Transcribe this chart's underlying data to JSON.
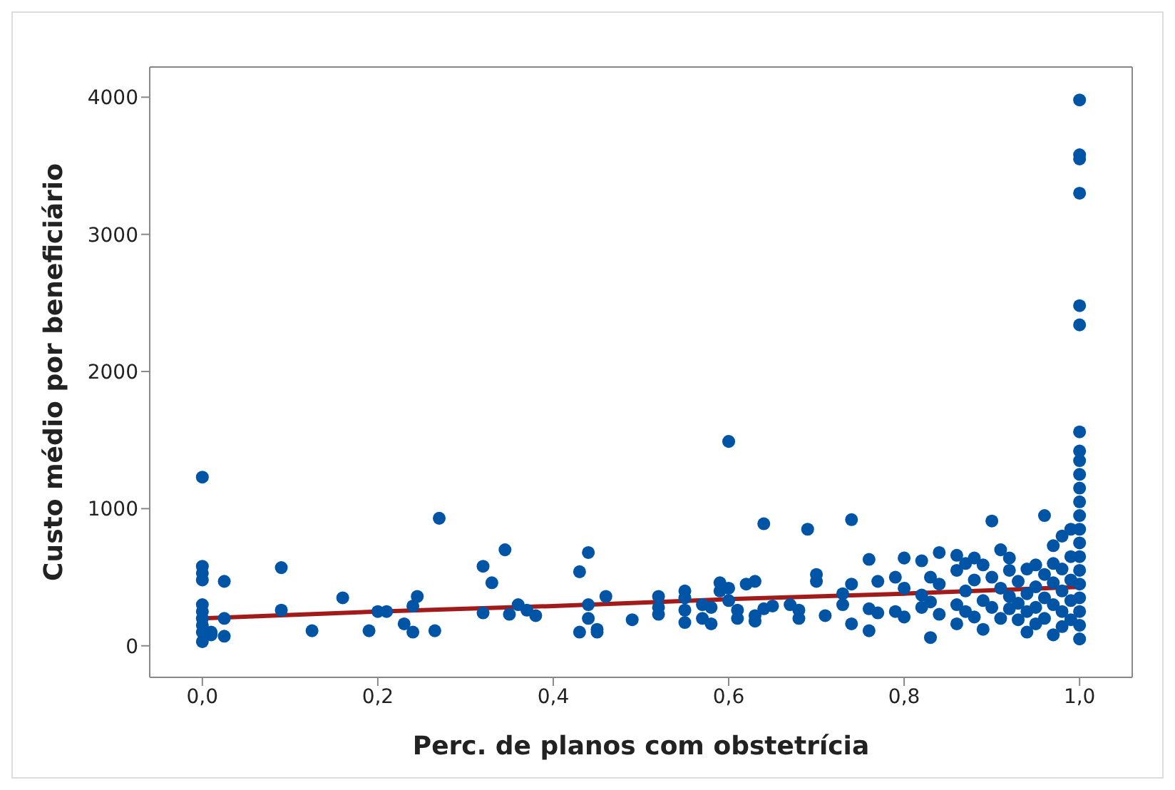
{
  "chart_data": {
    "type": "scatter",
    "xlabel": "Perc. de planos com obstetrícia",
    "ylabel": "Custo médio por beneficiário",
    "xlim": [
      -0.06,
      1.06
    ],
    "ylim": [
      -230,
      4220
    ],
    "xticks": [
      {
        "value": 0,
        "label": "0,0"
      },
      {
        "value": 0.2,
        "label": "0,2"
      },
      {
        "value": 0.4,
        "label": "0,4"
      },
      {
        "value": 0.6,
        "label": "0,6"
      },
      {
        "value": 0.8,
        "label": "0,8"
      },
      {
        "value": 1,
        "label": "1,0"
      }
    ],
    "yticks": [
      0,
      1000,
      2000,
      3000,
      4000
    ],
    "marker": "circle",
    "series": [
      {
        "type": "line",
        "color": "#a11b1b",
        "line_style": "solid",
        "marker": "none",
        "x": [
          0,
          0.2,
          0.4,
          0.6,
          0.8,
          1.0
        ],
        "values": [
          200,
          250,
          290,
          340,
          380,
          430
        ]
      },
      {
        "type": "scatter",
        "color": "#0054a6",
        "x": [
          0,
          0,
          0,
          0,
          0,
          0,
          0,
          0,
          0,
          0,
          0.01,
          0.01,
          0.025,
          0.025,
          0.025,
          0.09,
          0.09,
          0.125,
          0.16,
          0.19,
          0.2,
          0.21,
          0.23,
          0.24,
          0.24,
          0.245,
          0.265,
          0.27,
          0.32,
          0.32,
          0.33,
          0.345,
          0.35,
          0.36,
          0.37,
          0.38,
          0.43,
          0.43,
          0.44,
          0.44,
          0.44,
          0.45,
          0.45,
          0.46,
          0.49,
          0.52,
          0.52,
          0.52,
          0.55,
          0.55,
          0.55,
          0.55,
          0.57,
          0.57,
          0.58,
          0.58,
          0.59,
          0.59,
          0.6,
          0.6,
          0.6,
          0.61,
          0.61,
          0.62,
          0.63,
          0.63,
          0.63,
          0.64,
          0.64,
          0.65,
          0.67,
          0.68,
          0.68,
          0.69,
          0.7,
          0.7,
          0.71,
          0.73,
          0.73,
          0.74,
          0.74,
          0.74,
          0.76,
          0.76,
          0.76,
          0.77,
          0.77,
          0.79,
          0.79,
          0.8,
          0.8,
          0.8,
          0.82,
          0.82,
          0.82,
          0.83,
          0.83,
          0.83,
          0.84,
          0.84,
          0.84,
          0.86,
          0.86,
          0.86,
          0.86,
          0.87,
          0.87,
          0.87,
          0.88,
          0.88,
          0.88,
          0.89,
          0.89,
          0.89,
          0.9,
          0.9,
          0.9,
          0.91,
          0.91,
          0.91,
          0.92,
          0.92,
          0.92,
          0.92,
          0.93,
          0.93,
          0.93,
          0.94,
          0.94,
          0.94,
          0.94,
          0.95,
          0.95,
          0.95,
          0.95,
          0.96,
          0.96,
          0.96,
          0.96,
          0.97,
          0.97,
          0.97,
          0.97,
          0.97,
          0.98,
          0.98,
          0.98,
          0.98,
          0.98,
          0.99,
          0.99,
          0.99,
          0.99,
          0.99,
          1,
          1,
          1,
          1,
          1,
          1,
          1,
          1,
          1,
          1,
          1,
          1,
          1,
          1,
          1,
          1,
          1,
          1,
          1,
          1,
          1,
          1
        ],
        "values": [
          1230,
          580,
          530,
          480,
          300,
          250,
          200,
          150,
          100,
          30,
          80,
          100,
          200,
          470,
          70,
          570,
          260,
          110,
          350,
          110,
          250,
          250,
          160,
          290,
          100,
          360,
          110,
          930,
          580,
          240,
          460,
          700,
          230,
          300,
          260,
          220,
          540,
          100,
          680,
          200,
          300,
          120,
          100,
          360,
          190,
          360,
          230,
          280,
          400,
          260,
          170,
          350,
          200,
          300,
          280,
          160,
          460,
          400,
          1490,
          420,
          330,
          260,
          200,
          450,
          470,
          180,
          220,
          890,
          270,
          290,
          300,
          200,
          260,
          850,
          520,
          470,
          220,
          380,
          300,
          920,
          160,
          450,
          630,
          270,
          110,
          470,
          240,
          500,
          250,
          640,
          210,
          420,
          620,
          370,
          280,
          500,
          60,
          320,
          680,
          450,
          230,
          660,
          550,
          300,
          160,
          600,
          400,
          250,
          640,
          480,
          210,
          590,
          330,
          120,
          910,
          500,
          280,
          700,
          420,
          200,
          640,
          550,
          360,
          270,
          470,
          310,
          190,
          560,
          380,
          250,
          100,
          590,
          430,
          280,
          160,
          950,
          520,
          350,
          200,
          730,
          600,
          460,
          300,
          80,
          800,
          560,
          400,
          250,
          140,
          850,
          650,
          480,
          330,
          190,
          3980,
          3580,
          3550,
          3300,
          2480,
          2340,
          1560,
          1420,
          1350,
          1250,
          1150,
          1050,
          950,
          850,
          750,
          650,
          550,
          450,
          350,
          250,
          150,
          50
        ]
      }
    ]
  }
}
